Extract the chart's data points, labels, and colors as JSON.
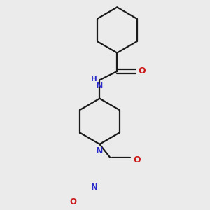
{
  "background_color": "#ebebeb",
  "bond_color": "#1a1a1a",
  "nitrogen_color": "#2b2bcc",
  "oxygen_color": "#cc1a1a",
  "line_width": 1.6,
  "figsize": [
    3.0,
    3.0
  ],
  "dpi": 100,
  "xlim": [
    0.0,
    3.0
  ],
  "ylim": [
    0.0,
    3.2
  ]
}
